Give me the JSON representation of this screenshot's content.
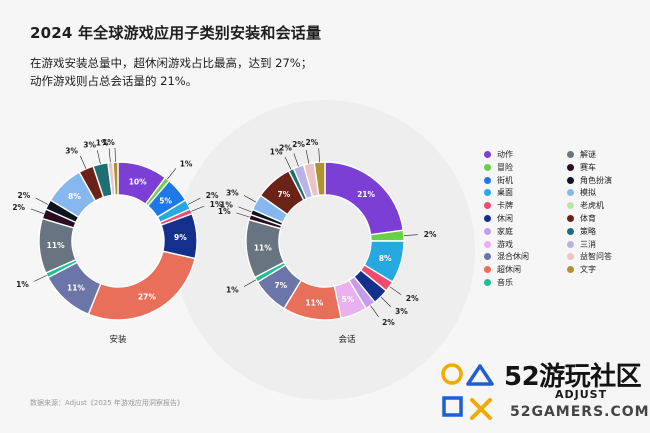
{
  "title": "2024 年全球游戏应用子类别安装和会话量",
  "subtitle_line1": "在游戏安装总量中，超休闲游戏占比最高，达到 27%；",
  "subtitle_line2": "动作游戏则占总会话量的 21%。",
  "source": "数据来源：Adjust《2025 年游戏应用洞察报告》",
  "watermark": {
    "name": "52游玩社区",
    "brand": "ADJUST",
    "url": "52GAMERS.COM"
  },
  "colors": {
    "动作": "#7b3fd6",
    "冒险": "#67d14a",
    "街机": "#1f78e8",
    "桌面": "#26a9e0",
    "卡牌": "#ef4b6e",
    "休闲": "#15308c",
    "家庭": "#c79bee",
    "游戏": "#e9b1ef",
    "混合休闲": "#6b75a8",
    "超休闲": "#e8705a",
    "音乐": "#1fbf96",
    "解谜": "#68747f",
    "赛车": "#2b0d1f",
    "角色扮演": "#0c1421",
    "模拟": "#86b7ef",
    "老虎机": "#b9e6a2",
    "体育": "#6b2317",
    "策略": "#1d6f74",
    "三消": "#bab4e6",
    "益智问答": "#ecc4c8",
    "文字": "#b0922e"
  },
  "legend": [
    "动作",
    "解谜",
    "冒险",
    "赛车",
    "街机",
    "角色扮演",
    "桌面",
    "模拟",
    "卡牌",
    "老虎机",
    "休闲",
    "体育",
    "家庭",
    "策略",
    "游戏",
    "三消",
    "混合休闲",
    "益智问答",
    "超休闲",
    "文字",
    "音乐"
  ],
  "chart_data": [
    {
      "type": "pie",
      "label": "安装",
      "unit": "%",
      "slices": [
        {
          "name": "动作",
          "value": 10,
          "label": "10%"
        },
        {
          "name": "冒险",
          "value": 1,
          "label": "1%"
        },
        {
          "name": "街机",
          "value": 5,
          "label": "5%"
        },
        {
          "name": "桌面",
          "value": 2,
          "label": "2%"
        },
        {
          "name": "卡牌",
          "value": 1,
          "label": "1%"
        },
        {
          "name": "休闲",
          "value": 9,
          "label": "9%"
        },
        {
          "name": "超休闲",
          "value": 27,
          "label": "27%"
        },
        {
          "name": "混合休闲",
          "value": 11,
          "label": "11%"
        },
        {
          "name": "音乐",
          "value": 1,
          "label": "1%"
        },
        {
          "name": "解谜",
          "value": 11,
          "label": "11%"
        },
        {
          "name": "赛车",
          "value": 2,
          "label": "2%"
        },
        {
          "name": "角色扮演",
          "value": 2,
          "label": "2%"
        },
        {
          "name": "模拟",
          "value": 8,
          "label": "8%"
        },
        {
          "name": "体育",
          "value": 3,
          "label": "3%"
        },
        {
          "name": "策略",
          "value": 3,
          "label": "3%"
        },
        {
          "name": "益智问答",
          "value": 1,
          "label": "1%"
        },
        {
          "name": "文字",
          "value": 1,
          "label": "1%"
        }
      ]
    },
    {
      "type": "pie",
      "label": "会话",
      "unit": "%",
      "slices": [
        {
          "name": "动作",
          "value": 21,
          "label": "21%"
        },
        {
          "name": "冒险",
          "value": 2,
          "label": "2%"
        },
        {
          "name": "桌面",
          "value": 8,
          "label": "8%"
        },
        {
          "name": "卡牌",
          "value": 2,
          "label": "2%"
        },
        {
          "name": "休闲",
          "value": 3,
          "label": "3%"
        },
        {
          "name": "家庭",
          "value": 2,
          "label": "2%"
        },
        {
          "name": "游戏",
          "value": 5,
          "label": "5%"
        },
        {
          "name": "超休闲",
          "value": 11,
          "label": "11%"
        },
        {
          "name": "混合休闲",
          "value": 7,
          "label": "7%"
        },
        {
          "name": "音乐",
          "value": 1,
          "label": "1%"
        },
        {
          "name": "解谜",
          "value": 11,
          "label": "11%"
        },
        {
          "name": "赛车",
          "value": 1,
          "label": "1%"
        },
        {
          "name": "角色扮演",
          "value": 1,
          "label": "1%"
        },
        {
          "name": "模拟",
          "value": 3,
          "label": "3%"
        },
        {
          "name": "体育",
          "value": 7,
          "label": "7%"
        },
        {
          "name": "策略",
          "value": 1,
          "label": "1%"
        },
        {
          "name": "三消",
          "value": 2,
          "label": "2%"
        },
        {
          "name": "益智问答",
          "value": 2,
          "label": "2%"
        },
        {
          "name": "文字",
          "value": 2,
          "label": "2%"
        }
      ]
    }
  ]
}
